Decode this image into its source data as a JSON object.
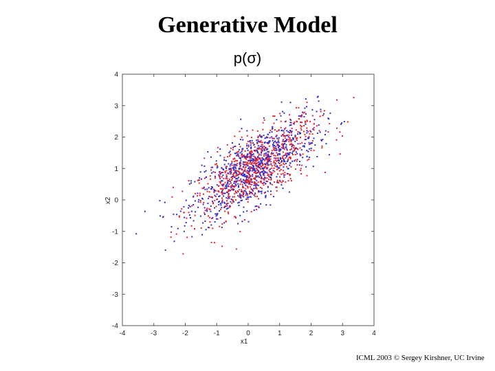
{
  "slide": {
    "title": "Generative Model",
    "subtitle": "p(σ)",
    "credit": "ICML 2003 © Sergey Kirshner, UC Irvine"
  },
  "chart_data": {
    "type": "scatter",
    "xlabel": "x1",
    "ylabel": "x2",
    "xlim": [
      -4,
      4
    ],
    "ylim": [
      -4,
      4
    ],
    "xticks": [
      -4,
      -3,
      -2,
      -1,
      0,
      1,
      2,
      3,
      4
    ],
    "yticks": [
      -4,
      -3,
      -2,
      -1,
      0,
      1,
      2,
      3,
      4
    ],
    "grid": false,
    "legend": "none",
    "series_colors": [
      "#e8202a",
      "#2b2bd6"
    ],
    "distribution": {
      "kind": "bivariate-gaussian",
      "mean": [
        0.2,
        1.0
      ],
      "std": [
        1.0,
        0.8
      ],
      "correlation": 0.72,
      "points_per_series": 800
    }
  }
}
